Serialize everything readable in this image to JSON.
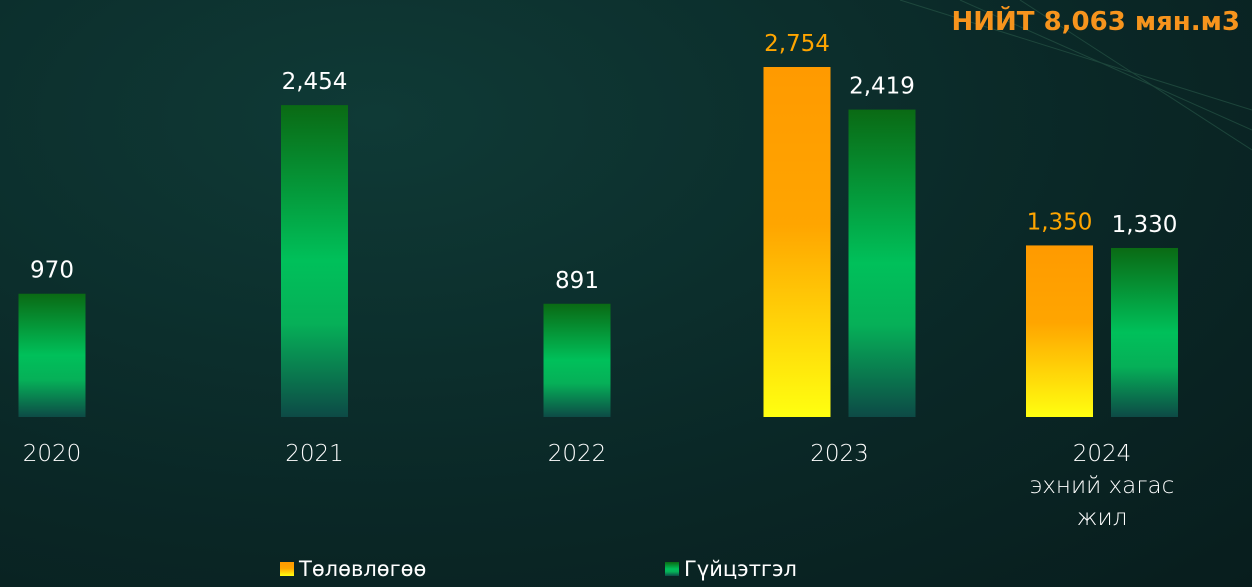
{
  "chart_data": {
    "type": "bar",
    "title": "НИЙТ 8,063 мян.м3",
    "categories": [
      "2020",
      "2021",
      "2022",
      "2023",
      "2024\nэхний хагас\nжил"
    ],
    "series": [
      {
        "name": "Төлөвлөгөө",
        "color": "#ffa500",
        "values": [
          null,
          null,
          null,
          2754,
          1350
        ],
        "value_labels": [
          null,
          null,
          null,
          "2,754",
          "1,350"
        ]
      },
      {
        "name": "Гүйцэтгэл",
        "color": "#00c05a",
        "values": [
          970,
          2454,
          891,
          2419,
          1330
        ],
        "value_labels": [
          "970",
          "2,454",
          "891",
          "2,419",
          "1,330"
        ]
      }
    ]
  }
}
